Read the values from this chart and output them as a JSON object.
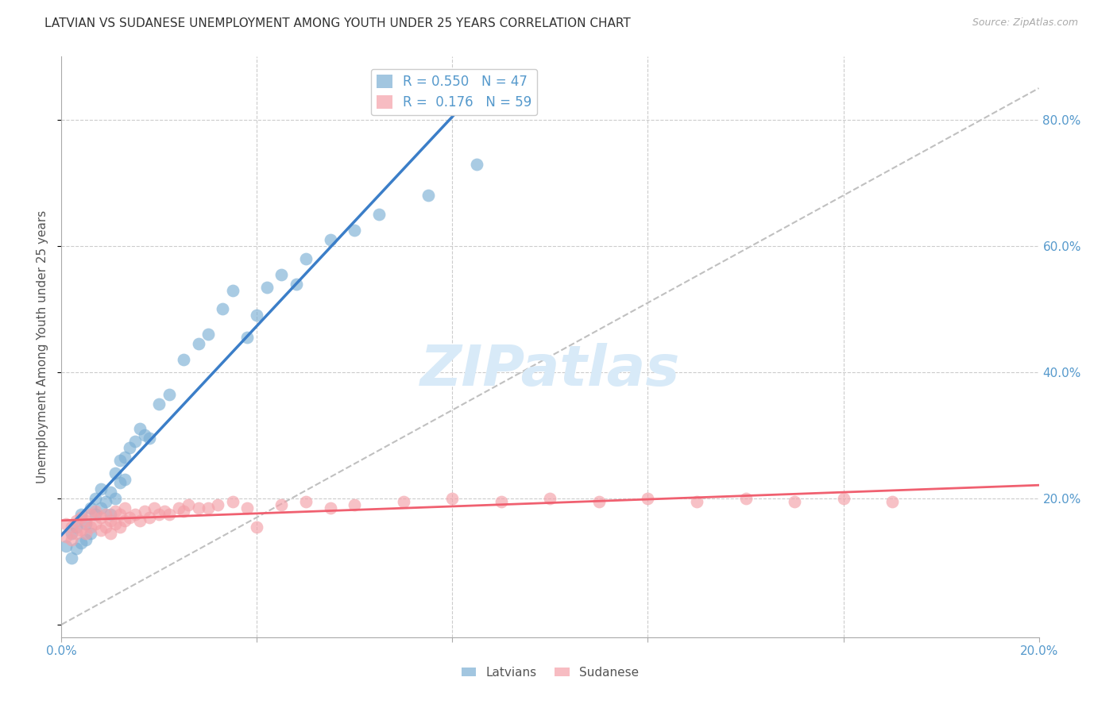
{
  "title": "LATVIAN VS SUDANESE UNEMPLOYMENT AMONG YOUTH UNDER 25 YEARS CORRELATION CHART",
  "source": "Source: ZipAtlas.com",
  "ylabel": "Unemployment Among Youth under 25 years",
  "xlim": [
    0.0,
    0.2
  ],
  "ylim_data": [
    0.0,
    0.9
  ],
  "ytick_vals": [
    0.2,
    0.4,
    0.6,
    0.8
  ],
  "ytick_labels": [
    "20.0%",
    "40.0%",
    "60.0%",
    "80.0%"
  ],
  "xtick_vals": [
    0.0,
    0.04,
    0.08,
    0.12,
    0.16,
    0.2
  ],
  "xtick_labels": [
    "0.0%",
    "",
    "",
    "",
    "",
    "20.0%"
  ],
  "latvian_R": "0.550",
  "latvian_N": "47",
  "sudanese_R": "0.176",
  "sudanese_N": "59",
  "latvian_color": "#7BAFD4",
  "sudanese_color": "#F4A0A8",
  "latvian_line_color": "#3B7EC8",
  "sudanese_line_color": "#F06070",
  "diagonal_color": "#C0C0C0",
  "background_color": "#FFFFFF",
  "tick_color": "#5599CC",
  "latvians_x": [
    0.001,
    0.002,
    0.002,
    0.003,
    0.003,
    0.004,
    0.004,
    0.005,
    0.005,
    0.006,
    0.006,
    0.007,
    0.007,
    0.008,
    0.008,
    0.009,
    0.01,
    0.01,
    0.011,
    0.011,
    0.012,
    0.012,
    0.013,
    0.013,
    0.014,
    0.015,
    0.016,
    0.017,
    0.018,
    0.02,
    0.022,
    0.025,
    0.028,
    0.03,
    0.033,
    0.035,
    0.038,
    0.04,
    0.042,
    0.045,
    0.048,
    0.05,
    0.055,
    0.06,
    0.065,
    0.075,
    0.085
  ],
  "latvians_y": [
    0.125,
    0.105,
    0.145,
    0.12,
    0.155,
    0.13,
    0.175,
    0.135,
    0.16,
    0.145,
    0.185,
    0.175,
    0.2,
    0.185,
    0.215,
    0.195,
    0.175,
    0.21,
    0.2,
    0.24,
    0.225,
    0.26,
    0.23,
    0.265,
    0.28,
    0.29,
    0.31,
    0.3,
    0.295,
    0.35,
    0.365,
    0.42,
    0.445,
    0.46,
    0.5,
    0.53,
    0.455,
    0.49,
    0.535,
    0.555,
    0.54,
    0.58,
    0.61,
    0.625,
    0.65,
    0.68,
    0.73
  ],
  "sudanese_x": [
    0.001,
    0.001,
    0.002,
    0.002,
    0.003,
    0.003,
    0.004,
    0.004,
    0.005,
    0.005,
    0.006,
    0.006,
    0.007,
    0.007,
    0.008,
    0.008,
    0.009,
    0.009,
    0.01,
    0.01,
    0.011,
    0.011,
    0.012,
    0.012,
    0.013,
    0.013,
    0.014,
    0.015,
    0.016,
    0.017,
    0.018,
    0.019,
    0.02,
    0.021,
    0.022,
    0.024,
    0.025,
    0.026,
    0.028,
    0.03,
    0.032,
    0.035,
    0.038,
    0.04,
    0.045,
    0.05,
    0.055,
    0.06,
    0.07,
    0.08,
    0.09,
    0.1,
    0.11,
    0.12,
    0.13,
    0.14,
    0.15,
    0.16,
    0.17
  ],
  "sudanese_y": [
    0.14,
    0.16,
    0.135,
    0.155,
    0.145,
    0.165,
    0.15,
    0.17,
    0.145,
    0.165,
    0.155,
    0.175,
    0.16,
    0.18,
    0.15,
    0.17,
    0.155,
    0.175,
    0.145,
    0.165,
    0.16,
    0.18,
    0.155,
    0.175,
    0.165,
    0.185,
    0.17,
    0.175,
    0.165,
    0.18,
    0.17,
    0.185,
    0.175,
    0.18,
    0.175,
    0.185,
    0.18,
    0.19,
    0.185,
    0.185,
    0.19,
    0.195,
    0.185,
    0.155,
    0.19,
    0.195,
    0.185,
    0.19,
    0.195,
    0.2,
    0.195,
    0.2,
    0.195,
    0.2,
    0.195,
    0.2,
    0.195,
    0.2,
    0.195
  ],
  "watermark_text": "ZIPatlas",
  "legend_label_latvians": "Latvians",
  "legend_label_sudanese": "Sudanese"
}
